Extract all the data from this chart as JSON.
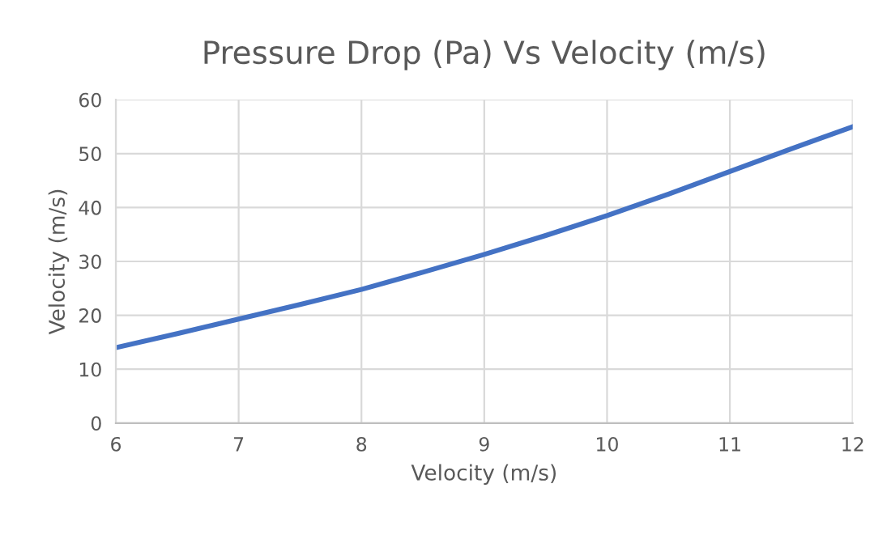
{
  "chart_data": {
    "type": "line",
    "title": "Pressure Drop (Pa) Vs Velocity (m/s)",
    "xlabel": "Velocity (m/s)",
    "ylabel": "Velocity (m/s)",
    "series": [
      {
        "color": "#4472c4",
        "x": [
          6,
          6.5,
          7,
          7.5,
          8,
          8.5,
          9,
          9.5,
          10,
          10.5,
          11,
          11.5,
          12
        ],
        "values": [
          14,
          16.6,
          19.3,
          22,
          24.8,
          28,
          31.3,
          34.8,
          38.5,
          42.5,
          46.7,
          50.9,
          55
        ]
      }
    ],
    "xlim": [
      6,
      12
    ],
    "xticks": [
      6,
      7,
      8,
      9,
      10,
      11,
      12
    ],
    "ylim": [
      0,
      60
    ],
    "yticks": [
      0,
      10,
      20,
      30,
      40,
      50,
      60
    ],
    "grid": true,
    "marker": "none",
    "line_style": "solid"
  }
}
